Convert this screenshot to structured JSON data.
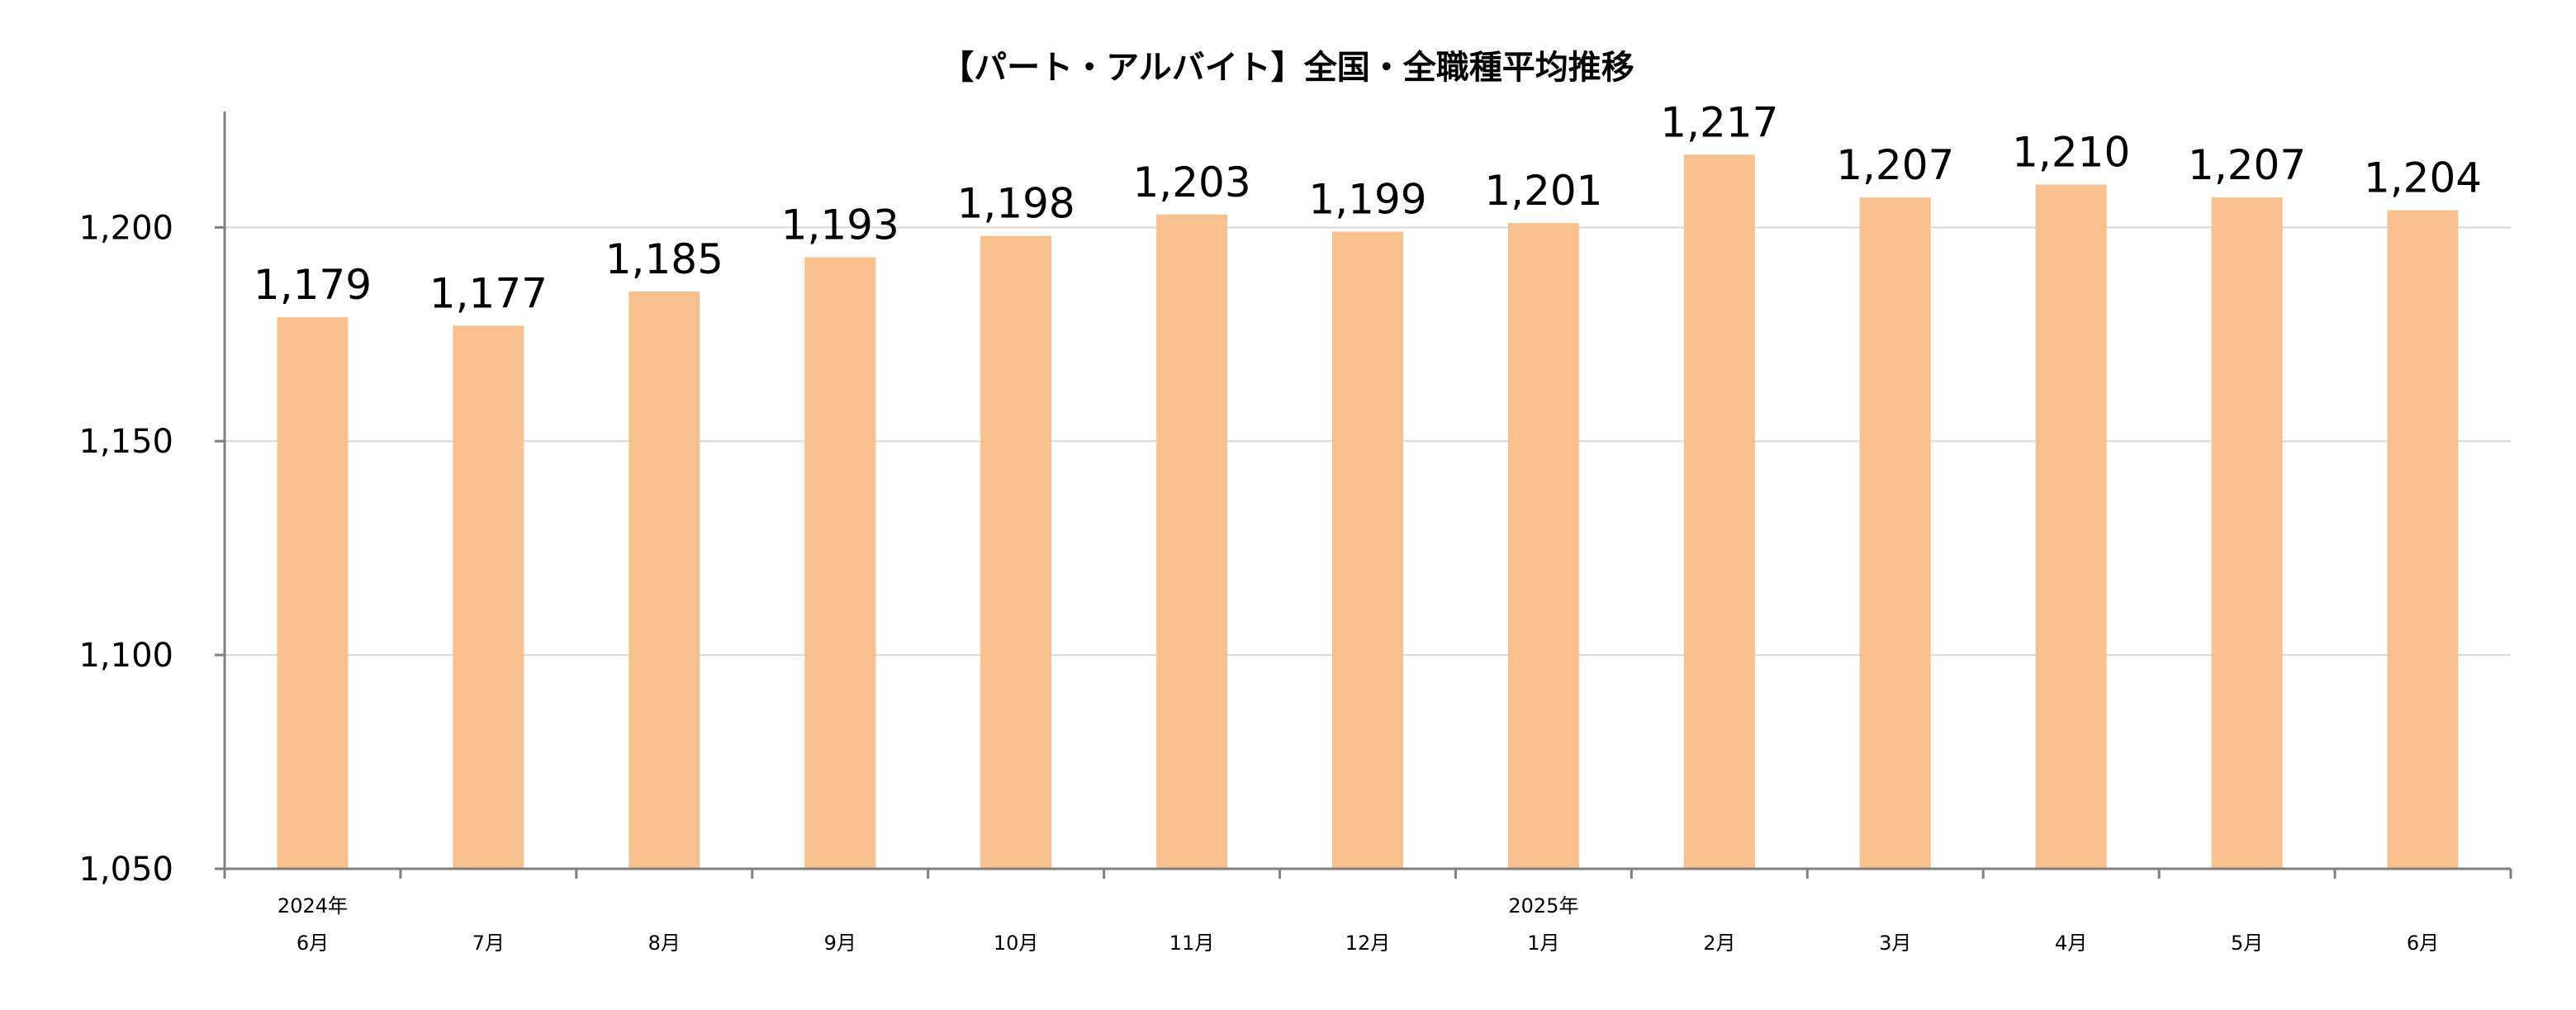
{
  "chart_data": {
    "type": "bar",
    "title": "【パート・アルバイト】全国・全職種平均推移",
    "categories": [
      "6月",
      "7月",
      "8月",
      "9月",
      "10月",
      "11月",
      "12月",
      "1月",
      "2月",
      "3月",
      "4月",
      "5月",
      "6月"
    ],
    "category_year_labels": [
      "2024年",
      "",
      "",
      "",
      "",
      "",
      "",
      "2025年",
      "",
      "",
      "",
      "",
      ""
    ],
    "values": [
      1179,
      1177,
      1185,
      1193,
      1198,
      1203,
      1199,
      1201,
      1217,
      1207,
      1210,
      1207,
      1204
    ],
    "value_labels": [
      "1,179",
      "1,177",
      "1,185",
      "1,193",
      "1,198",
      "1,203",
      "1,199",
      "1,201",
      "1,217",
      "1,207",
      "1,210",
      "1,207",
      "1,204"
    ],
    "ylim": [
      1050,
      1230
    ],
    "yticks": [
      1050,
      1100,
      1150,
      1200
    ],
    "ytick_labels": [
      "1,050",
      "1,100",
      "1,150",
      "1,200"
    ],
    "grid": true,
    "bar_color": "#F9C08F",
    "xlabel": "",
    "ylabel": ""
  }
}
